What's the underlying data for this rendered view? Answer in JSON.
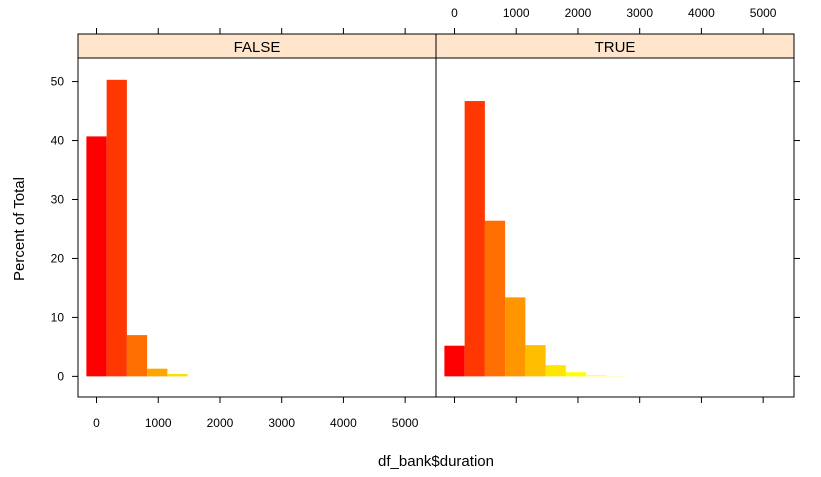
{
  "chart_data": {
    "type": "bar",
    "xlabel": "df_bank$duration",
    "ylabel": "Percent of Total",
    "xlim": [
      -300,
      5500
    ],
    "ylim": [
      -3.5,
      54
    ],
    "x_ticks": [
      0,
      1000,
      2000,
      3000,
      4000,
      5000
    ],
    "y_ticks": [
      0,
      10,
      20,
      30,
      40,
      50
    ],
    "bin_width": 328,
    "bin_start": -164,
    "strip_color": "#ffe5cc",
    "panels": [
      {
        "name": "FALSE",
        "bins": [
          {
            "x0": -164,
            "x1": 164,
            "value": 40.7,
            "color": "#ff0000"
          },
          {
            "x0": 164,
            "x1": 492,
            "value": 50.3,
            "color": "#ff3700"
          },
          {
            "x0": 492,
            "x1": 820,
            "value": 7.0,
            "color": "#ff6e00"
          },
          {
            "x0": 820,
            "x1": 1148,
            "value": 1.3,
            "color": "#ffa500"
          },
          {
            "x0": 1148,
            "x1": 1476,
            "value": 0.4,
            "color": "#ffdc00"
          }
        ]
      },
      {
        "name": "TRUE",
        "bins": [
          {
            "x0": -164,
            "x1": 164,
            "value": 5.2,
            "color": "#ff0000"
          },
          {
            "x0": 164,
            "x1": 492,
            "value": 46.7,
            "color": "#ff3700"
          },
          {
            "x0": 492,
            "x1": 820,
            "value": 26.4,
            "color": "#ff6e00"
          },
          {
            "x0": 820,
            "x1": 1148,
            "value": 13.4,
            "color": "#ff9600"
          },
          {
            "x0": 1148,
            "x1": 1476,
            "value": 5.3,
            "color": "#ffbe00"
          },
          {
            "x0": 1476,
            "x1": 1804,
            "value": 1.9,
            "color": "#ffe600"
          },
          {
            "x0": 1804,
            "x1": 2132,
            "value": 0.7,
            "color": "#ffff00"
          },
          {
            "x0": 2132,
            "x1": 2460,
            "value": 0.2,
            "color": "#ffff40"
          },
          {
            "x0": 2460,
            "x1": 2788,
            "value": 0.1,
            "color": "#ffff80"
          }
        ]
      }
    ]
  }
}
